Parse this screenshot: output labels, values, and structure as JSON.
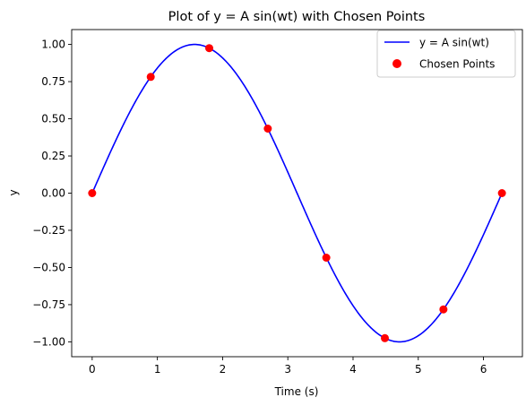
{
  "chart_data": {
    "type": "line",
    "title": "Plot of y = A sin(wt) with Chosen Points",
    "xlabel": "Time (s)",
    "ylabel": "y",
    "xlim": [
      -0.314,
      6.597
    ],
    "ylim": [
      -1.1,
      1.1
    ],
    "xticks": [
      0,
      1,
      2,
      3,
      4,
      5,
      6
    ],
    "yticks": [
      -1.0,
      -0.75,
      -0.5,
      -0.25,
      0.0,
      0.25,
      0.5,
      0.75,
      1.0
    ],
    "grid": false,
    "legend_position": "top-right",
    "series": [
      {
        "name": "y = A sin(wt)",
        "kind": "line",
        "color": "#0000ff",
        "function": "sin",
        "amplitude": 1.0,
        "omega": 1.0,
        "x_range": [
          0,
          6.2832
        ]
      },
      {
        "name": "Chosen Points",
        "kind": "scatter",
        "color": "#ff0000",
        "x": [
          0.0,
          0.898,
          1.795,
          2.693,
          3.59,
          4.488,
          5.386,
          6.283
        ],
        "y": [
          0.0,
          0.782,
          0.975,
          0.434,
          -0.434,
          -0.975,
          -0.782,
          0.0
        ]
      }
    ]
  }
}
